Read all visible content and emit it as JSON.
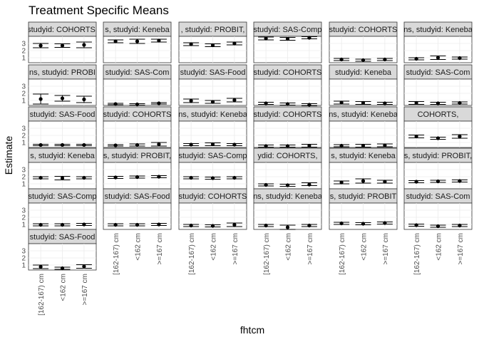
{
  "chart_data": {
    "type": "scatter",
    "title": "Treatment Specific Means",
    "xlabel": "fhtcm",
    "ylabel": "Estimate",
    "categories": [
      "[162-167) cm",
      "<162 cm",
      ">=167 cm"
    ],
    "y_ticks": [
      1,
      2,
      3
    ],
    "ylim": [
      0.3,
      4.0
    ],
    "grid": true,
    "panels": [
      {
        "strip": "studyid: COHORTS,",
        "values": [
          2.7,
          2.7,
          2.8
        ],
        "ci": [
          [
            2.4,
            3.0
          ],
          [
            2.45,
            2.95
          ],
          [
            2.4,
            3.2
          ]
        ]
      },
      {
        "strip": "s, studyid: Keneba",
        "values": [
          3.3,
          3.3,
          3.4
        ],
        "ci": [
          [
            3.1,
            3.5
          ],
          [
            3.0,
            3.6
          ],
          [
            3.2,
            3.6
          ]
        ]
      },
      {
        "strip": ", studyid: PROBIT,",
        "values": [
          2.9,
          2.75,
          3.0
        ],
        "ci": [
          [
            2.7,
            3.1
          ],
          [
            2.55,
            2.95
          ],
          [
            2.8,
            3.2
          ]
        ]
      },
      {
        "strip": "studyid: SAS-Comp",
        "values": [
          3.7,
          3.65,
          3.8
        ],
        "ci": [
          [
            3.5,
            3.9
          ],
          [
            3.45,
            3.85
          ],
          [
            3.65,
            3.95
          ]
        ]
      },
      {
        "strip": "studyid: COHORTS",
        "values": [
          0.75,
          0.65,
          0.75
        ],
        "ci": [
          [
            0.6,
            0.9
          ],
          [
            0.5,
            0.8
          ],
          [
            0.6,
            0.9
          ]
        ]
      },
      {
        "strip": "ns, studyid: Keneba",
        "values": [
          0.85,
          1.0,
          0.95
        ],
        "ci": [
          [
            0.7,
            1.0
          ],
          [
            0.75,
            1.25
          ],
          [
            0.8,
            1.1
          ]
        ]
      },
      {
        "strip": "ns, studyid: PROBI",
        "values": [
          1.2,
          1.3,
          1.15
        ],
        "ci": [
          [
            0.5,
            1.9
          ],
          [
            0.9,
            1.7
          ],
          [
            0.7,
            1.6
          ]
        ]
      },
      {
        "strip": "studyid: SAS-Com",
        "values": [
          0.5,
          0.45,
          0.6
        ],
        "ci": [
          [
            0.4,
            0.6
          ],
          [
            0.35,
            0.55
          ],
          [
            0.5,
            0.7
          ]
        ]
      },
      {
        "strip": "studyid: SAS-Food",
        "values": [
          0.95,
          0.8,
          1.05
        ],
        "ci": [
          [
            0.7,
            1.2
          ],
          [
            0.6,
            1.0
          ],
          [
            0.8,
            1.3
          ]
        ]
      },
      {
        "strip": "studyid: COHORTS",
        "values": [
          0.6,
          0.5,
          0.4
        ],
        "ci": [
          [
            0.45,
            0.75
          ],
          [
            0.35,
            0.65
          ],
          [
            0.25,
            0.55
          ]
        ]
      },
      {
        "strip": "studyid: Keneba",
        "values": [
          0.7,
          0.65,
          0.6
        ],
        "ci": [
          [
            0.5,
            0.9
          ],
          [
            0.45,
            0.85
          ],
          [
            0.45,
            0.75
          ]
        ]
      },
      {
        "strip": "studyid: SAS-Com",
        "values": [
          0.65,
          0.6,
          0.65
        ],
        "ci": [
          [
            0.45,
            0.85
          ],
          [
            0.45,
            0.75
          ],
          [
            0.5,
            0.8
          ]
        ]
      },
      {
        "strip": "studyid: SAS-Food",
        "values": [
          0.65,
          0.65,
          0.65
        ],
        "ci": [
          [
            0.55,
            0.75
          ],
          [
            0.55,
            0.75
          ],
          [
            0.55,
            0.75
          ]
        ]
      },
      {
        "strip": "studyid: COHORTS",
        "values": [
          0.6,
          0.65,
          0.75
        ],
        "ci": [
          [
            0.5,
            0.7
          ],
          [
            0.5,
            0.8
          ],
          [
            0.5,
            1.0
          ]
        ]
      },
      {
        "strip": "ns, studyid: Keneba",
        "values": [
          0.7,
          0.75,
          0.7
        ],
        "ci": [
          [
            0.55,
            0.85
          ],
          [
            0.55,
            0.95
          ],
          [
            0.55,
            0.85
          ]
        ]
      },
      {
        "strip": "studyid: COHORTS",
        "values": [
          0.5,
          0.5,
          0.55
        ],
        "ci": [
          [
            0.35,
            0.65
          ],
          [
            0.35,
            0.65
          ],
          [
            0.35,
            0.75
          ]
        ]
      },
      {
        "strip": "ns, studyid: Keneba",
        "values": [
          0.55,
          0.55,
          0.6
        ],
        "ci": [
          [
            0.4,
            0.7
          ],
          [
            0.35,
            0.75
          ],
          [
            0.4,
            0.8
          ]
        ]
      },
      {
        "strip": "COHORTS,",
        "values": [
          1.85,
          1.6,
          1.85
        ],
        "ci": [
          [
            1.65,
            2.05
          ],
          [
            1.45,
            1.75
          ],
          [
            1.6,
            2.1
          ]
        ]
      },
      {
        "strip": "s, studyid: Keneba",
        "values": [
          1.85,
          1.8,
          1.85
        ],
        "ci": [
          [
            1.7,
            2.0
          ],
          [
            1.55,
            2.05
          ],
          [
            1.7,
            2.0
          ]
        ]
      },
      {
        "strip": "s, studyid: PROBIT,",
        "values": [
          1.9,
          1.95,
          2.0
        ],
        "ci": [
          [
            1.75,
            2.05
          ],
          [
            1.8,
            2.1
          ],
          [
            1.85,
            2.15
          ]
        ]
      },
      {
        "strip": "studyid: SAS-Comp",
        "values": [
          1.85,
          1.8,
          1.85
        ],
        "ci": [
          [
            1.7,
            2.0
          ],
          [
            1.65,
            1.95
          ],
          [
            1.7,
            2.0
          ]
        ]
      },
      {
        "strip": "ydid: COHORTS,",
        "values": [
          0.85,
          0.8,
          0.9
        ],
        "ci": [
          [
            0.7,
            1.0
          ],
          [
            0.65,
            0.95
          ],
          [
            0.75,
            1.15
          ]
        ]
      },
      {
        "strip": "s, studyid: Keneba",
        "values": [
          1.2,
          1.4,
          1.3
        ],
        "ci": [
          [
            1.0,
            1.4
          ],
          [
            1.1,
            1.7
          ],
          [
            1.1,
            1.5
          ]
        ]
      },
      {
        "strip": "s, studyid: PROBIT,",
        "values": [
          1.3,
          1.35,
          1.4
        ],
        "ci": [
          [
            1.15,
            1.45
          ],
          [
            1.2,
            1.5
          ],
          [
            1.25,
            1.55
          ]
        ]
      },
      {
        "strip": "studyid: SAS-Comp",
        "values": [
          0.95,
          0.95,
          1.0
        ],
        "ci": [
          [
            0.8,
            1.1
          ],
          [
            0.8,
            1.1
          ],
          [
            0.85,
            1.15
          ]
        ]
      },
      {
        "strip": "studyid: SAS-Food",
        "values": [
          0.95,
          0.95,
          1.0
        ],
        "ci": [
          [
            0.8,
            1.1
          ],
          [
            0.8,
            1.1
          ],
          [
            0.85,
            1.15
          ]
        ]
      },
      {
        "strip": "studyid: COHORTS",
        "values": [
          0.85,
          0.8,
          0.95
        ],
        "ci": [
          [
            0.7,
            1.0
          ],
          [
            0.65,
            0.95
          ],
          [
            0.7,
            1.2
          ]
        ]
      },
      {
        "strip": "ns, studyid: Keneba",
        "values": [
          0.85,
          0.6,
          0.85
        ],
        "ci": [
          [
            0.7,
            1.0
          ],
          [
            0.3,
            0.9
          ],
          [
            0.7,
            1.0
          ]
        ]
      },
      {
        "strip": "s, studyid: PROBIT",
        "values": [
          1.15,
          1.1,
          1.2
        ],
        "ci": [
          [
            1.0,
            1.3
          ],
          [
            0.95,
            1.25
          ],
          [
            1.05,
            1.35
          ]
        ]
      },
      {
        "strip": "studyid: SAS-Com",
        "values": [
          0.9,
          0.75,
          0.85
        ],
        "ci": [
          [
            0.75,
            1.05
          ],
          [
            0.6,
            0.9
          ],
          [
            0.7,
            1.0
          ]
        ]
      },
      {
        "strip": "studyid: SAS-Food",
        "values": [
          0.75,
          0.55,
          0.8
        ],
        "ci": [
          [
            0.5,
            1.0
          ],
          [
            0.4,
            0.7
          ],
          [
            0.55,
            1.05
          ]
        ]
      }
    ]
  }
}
